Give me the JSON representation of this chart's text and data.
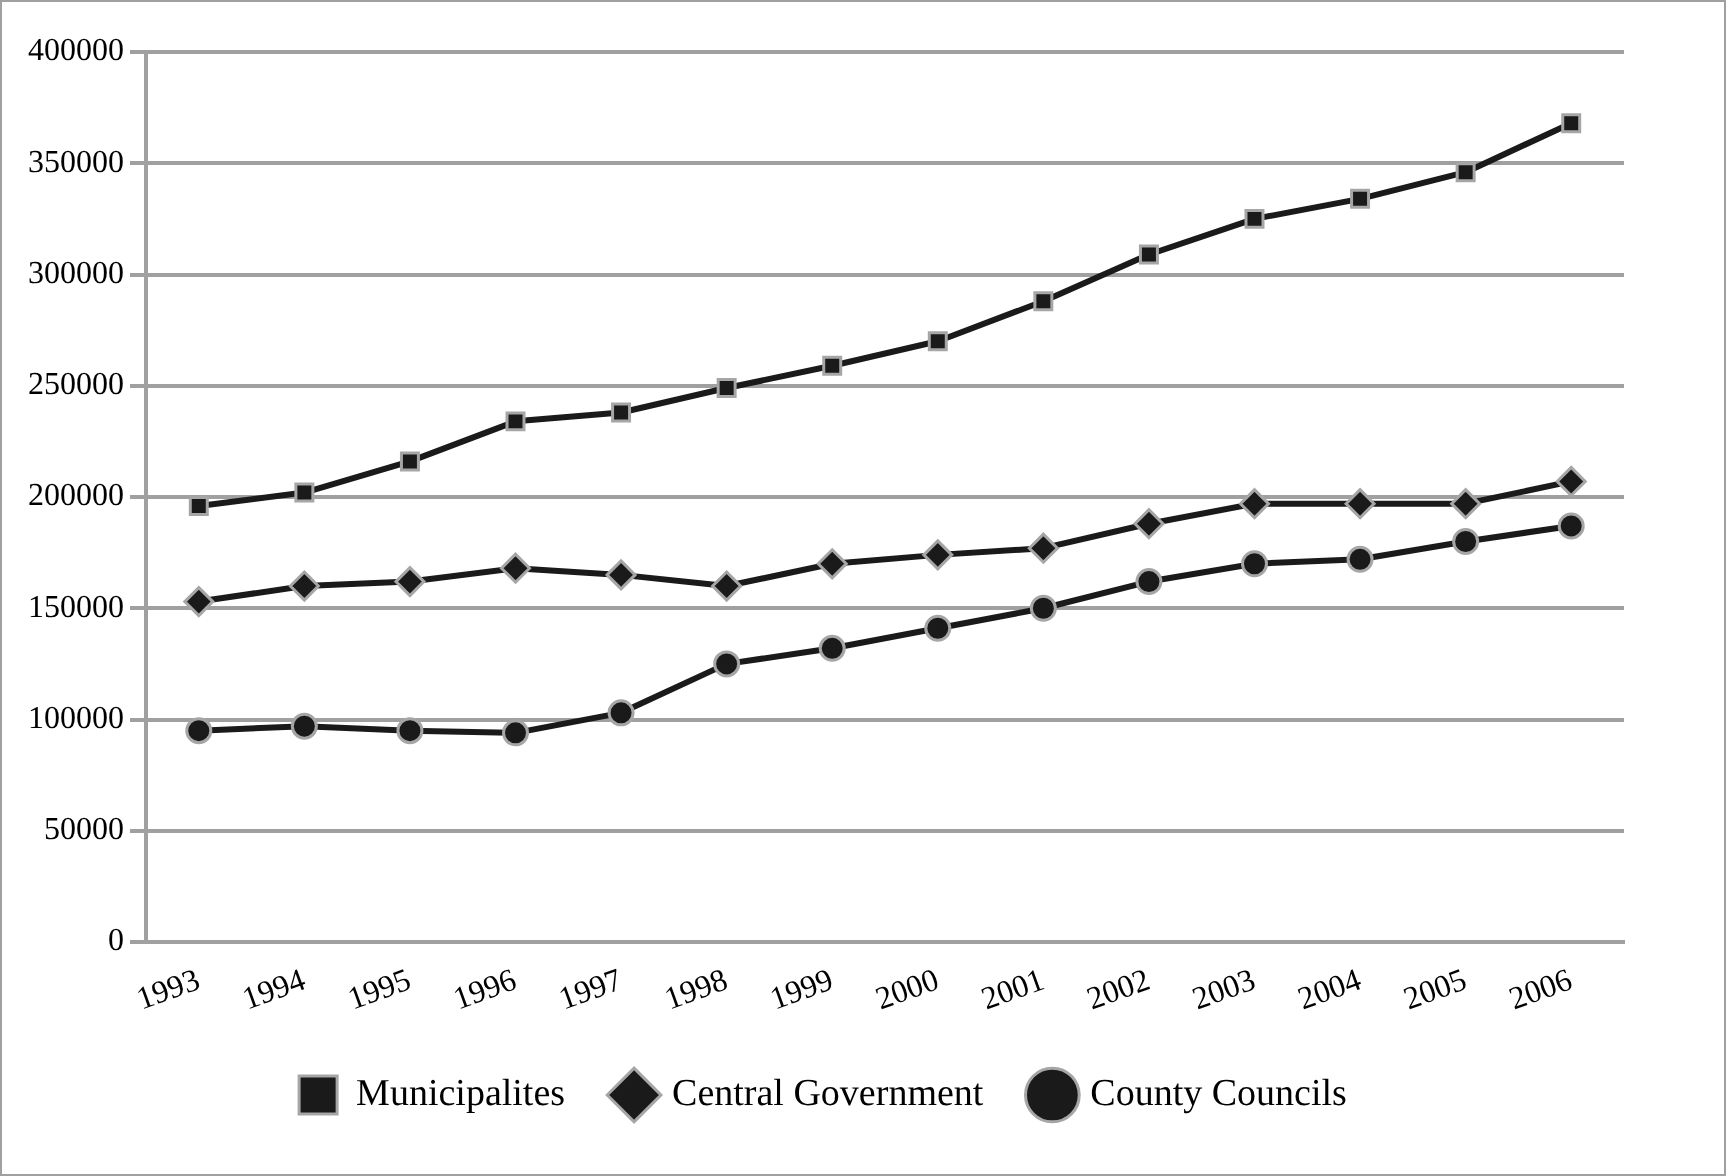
{
  "chart_data": {
    "type": "line",
    "categories": [
      "1993",
      "1994",
      "1995",
      "1996",
      "1997",
      "1998",
      "1999",
      "2000",
      "2001",
      "2002",
      "2003",
      "2004",
      "2005",
      "2006"
    ],
    "series": [
      {
        "name": "Municipalites",
        "color": "#1a1a1a",
        "marker": "square",
        "values": [
          196000,
          202000,
          216000,
          234000,
          238000,
          249000,
          259000,
          270000,
          288000,
          309000,
          325000,
          334000,
          346000,
          368000
        ]
      },
      {
        "name": "Central Government",
        "color": "#1a1a1a",
        "marker": "diamond",
        "values": [
          153000,
          160000,
          162000,
          168000,
          165000,
          160000,
          170000,
          174000,
          177000,
          188000,
          197000,
          197000,
          197000,
          207000
        ]
      },
      {
        "name": "County Councils",
        "color": "#1a1a1a",
        "marker": "circle",
        "values": [
          95000,
          97000,
          95000,
          94000,
          103000,
          125000,
          132000,
          141000,
          150000,
          162000,
          170000,
          172000,
          180000,
          187000
        ]
      }
    ],
    "ylim": [
      0,
      400000
    ],
    "yticks": [
      0,
      50000,
      100000,
      150000,
      200000,
      250000,
      300000,
      350000,
      400000
    ],
    "grid": "y",
    "legend": "bottom",
    "line_style": "solid"
  }
}
